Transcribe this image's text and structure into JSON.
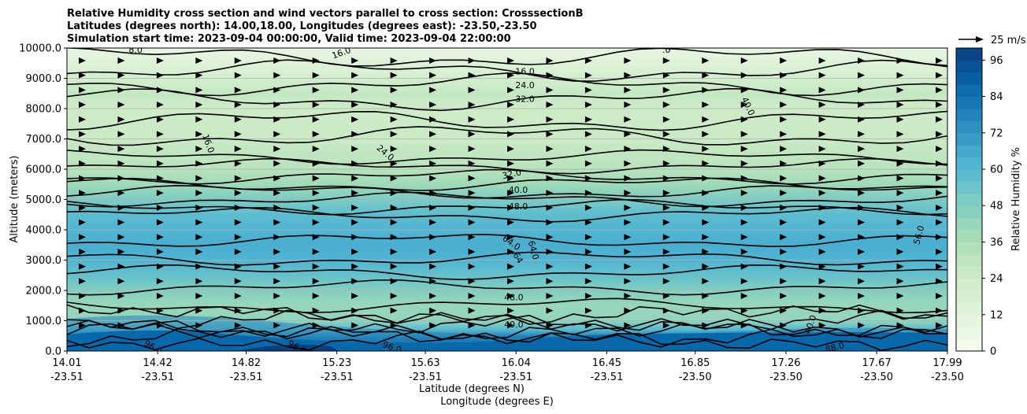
{
  "chart_data": {
    "type": "heatmap",
    "title_lines": [
      "Relative Humidity cross section and wind vectors parallel to cross section: CrosssectionB",
      "Latitudes (degrees north): 14.00,18.00, Longitudes (degrees east): -23.50,-23.50",
      "Simulation start time: 2023-09-04 00:00:00, Valid time: 2023-09-04 22:00:00"
    ],
    "xlabel_lat": "Latitude (degrees N)",
    "xlabel_lon": "Longitude (degrees E)",
    "ylabel": "Altitude (meters)",
    "colorbar_label": "Relative Humidity %",
    "quiver_key_label": "25 m/s",
    "x_ticks": [
      {
        "lat": "14.01",
        "lon": "-23.51"
      },
      {
        "lat": "14.42",
        "lon": "-23.51"
      },
      {
        "lat": "14.82",
        "lon": "-23.51"
      },
      {
        "lat": "15.23",
        "lon": "-23.51"
      },
      {
        "lat": "15.63",
        "lon": "-23.51"
      },
      {
        "lat": "16.04",
        "lon": "-23.51"
      },
      {
        "lat": "16.45",
        "lon": "-23.51"
      },
      {
        "lat": "16.85",
        "lon": "-23.50"
      },
      {
        "lat": "17.26",
        "lon": "-23.50"
      },
      {
        "lat": "17.67",
        "lon": "-23.50"
      },
      {
        "lat": "17.99",
        "lon": "-23.50"
      }
    ],
    "x_range": [
      14.01,
      17.99
    ],
    "y_ticks": [
      "0.0",
      "1000.0",
      "2000.0",
      "3000.0",
      "4000.0",
      "5000.0",
      "6000.0",
      "7000.0",
      "8000.0",
      "9000.0",
      "10000.0"
    ],
    "y_range": [
      0,
      10000
    ],
    "colorbar_ticks": [
      "0",
      "12",
      "24",
      "36",
      "48",
      "60",
      "72",
      "84",
      "96"
    ],
    "colorbar_range": [
      0,
      100
    ],
    "colormap": [
      "#f7fcf0",
      "#e0f3db",
      "#ccebc5",
      "#a8ddb5",
      "#7bccc4",
      "#4eb3d3",
      "#2b8cbe",
      "#0868ac",
      "#084081"
    ],
    "humidity_profile": [
      {
        "altitude": 0,
        "rh": 98
      },
      {
        "altitude": 200,
        "rh": 96
      },
      {
        "altitude": 400,
        "rh": 86
      },
      {
        "altitude": 700,
        "rh": 60
      },
      {
        "altitude": 1000,
        "rh": 44
      },
      {
        "altitude": 1500,
        "rh": 42
      },
      {
        "altitude": 2000,
        "rh": 48
      },
      {
        "altitude": 2500,
        "rh": 56
      },
      {
        "altitude": 3000,
        "rh": 62
      },
      {
        "altitude": 3500,
        "rh": 64
      },
      {
        "altitude": 4000,
        "rh": 62
      },
      {
        "altitude": 4500,
        "rh": 58
      },
      {
        "altitude": 5000,
        "rh": 50
      },
      {
        "altitude": 5500,
        "rh": 40
      },
      {
        "altitude": 6000,
        "rh": 32
      },
      {
        "altitude": 7000,
        "rh": 26
      },
      {
        "altitude": 8000,
        "rh": 24
      },
      {
        "altitude": 8500,
        "rh": 28
      },
      {
        "altitude": 9000,
        "rh": 20
      },
      {
        "altitude": 9500,
        "rh": 14
      },
      {
        "altitude": 10000,
        "rh": 8
      }
    ],
    "contour_labels": [
      {
        "text": "8.0",
        "lat": 14.32,
        "altitude": 9950,
        "angle": 0
      },
      {
        "text": "16.0",
        "lat": 15.25,
        "altitude": 9850,
        "angle": -20
      },
      {
        "text": ".0",
        "lat": 16.72,
        "altitude": 9950,
        "angle": 0
      },
      {
        "text": "16.0",
        "lat": 16.08,
        "altitude": 9230,
        "angle": 0
      },
      {
        "text": "24.0",
        "lat": 16.08,
        "altitude": 8780,
        "angle": 0
      },
      {
        "text": "32.0",
        "lat": 16.08,
        "altitude": 8330,
        "angle": 0
      },
      {
        "text": "40.0",
        "lat": 17.09,
        "altitude": 8080,
        "angle": 65
      },
      {
        "text": "16.0",
        "lat": 14.65,
        "altitude": 6850,
        "angle": 70
      },
      {
        "text": "24.0",
        "lat": 15.45,
        "altitude": 6550,
        "angle": 40
      },
      {
        "text": "32.0",
        "lat": 16.02,
        "altitude": 5850,
        "angle": -12
      },
      {
        "text": "40.0",
        "lat": 16.05,
        "altitude": 5330,
        "angle": 0
      },
      {
        "text": "48.0",
        "lat": 16.05,
        "altitude": 4780,
        "angle": 0
      },
      {
        "text": "64.0",
        "lat": 16.02,
        "altitude": 3580,
        "angle": 35
      },
      {
        "text": "64.0",
        "lat": 16.12,
        "altitude": 3330,
        "angle": 75
      },
      {
        "text": "64",
        "lat": 16.05,
        "altitude": 3080,
        "angle": 60
      },
      {
        "text": "56.0",
        "lat": 17.86,
        "altitude": 3830,
        "angle": -75
      },
      {
        "text": "48.0",
        "lat": 16.03,
        "altitude": 1780,
        "angle": 0
      },
      {
        "text": "40.0",
        "lat": 16.03,
        "altitude": 880,
        "angle": 0
      },
      {
        "text": "40.0",
        "lat": 17.37,
        "altitude": 880,
        "angle": -70
      },
      {
        "text": "96.0",
        "lat": 14.4,
        "altitude": 130,
        "angle": 30
      },
      {
        "text": "96.0",
        "lat": 15.05,
        "altitude": 130,
        "angle": 30
      },
      {
        "text": "96.0",
        "lat": 15.48,
        "altitude": 130,
        "angle": 20
      },
      {
        "text": "88.0",
        "lat": 17.48,
        "altitude": 130,
        "angle": -15
      }
    ]
  }
}
